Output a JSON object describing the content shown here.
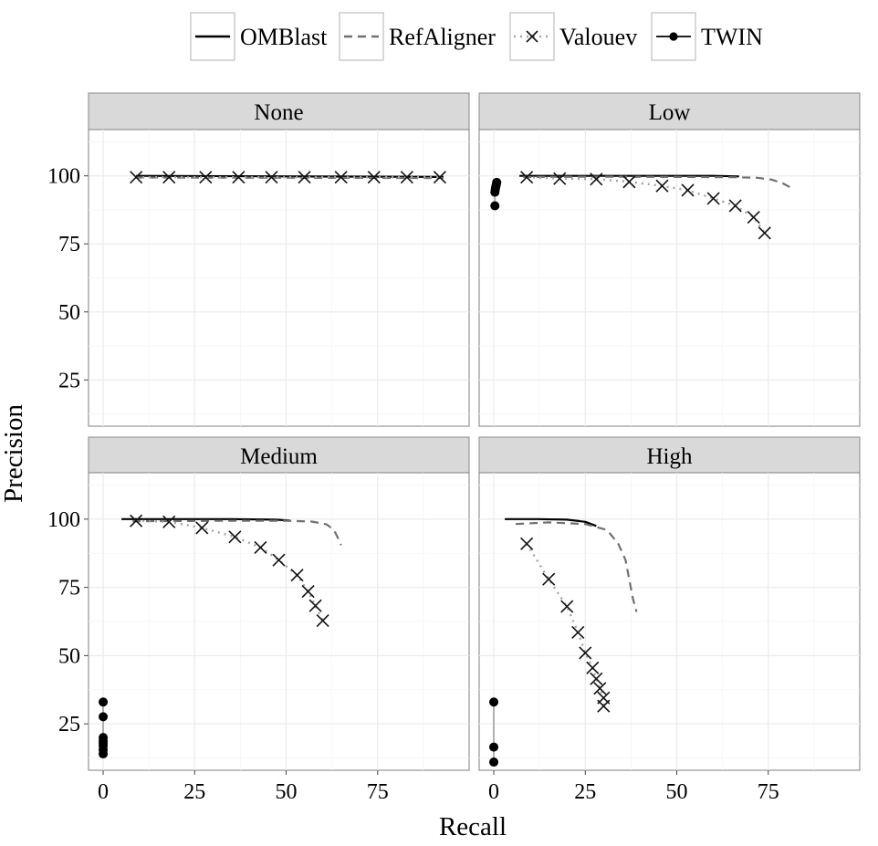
{
  "chart_data": {
    "type": "line",
    "title": "",
    "xlabel": "Recall",
    "ylabel": "Precision",
    "xlim": [
      -4,
      100
    ],
    "ylim": [
      8,
      117
    ],
    "x_ticks": [
      0,
      25,
      50,
      75
    ],
    "y_ticks": [
      25,
      50,
      75,
      100
    ],
    "grid": true,
    "legend_position": "top",
    "legend": [
      {
        "name": "OMBlast",
        "style": "solid",
        "color": "#000000"
      },
      {
        "name": "RefAligner",
        "style": "dashed",
        "color": "#707070"
      },
      {
        "name": "Valouev",
        "style": "dotted-cross",
        "color": "#a0a0a0"
      },
      {
        "name": "TWIN",
        "style": "point-line",
        "color": "#000000"
      }
    ],
    "panels": [
      {
        "title": "None",
        "series": [
          {
            "name": "OMBlast",
            "x": [
              9,
              93
            ],
            "y": [
              100,
              99.6
            ]
          },
          {
            "name": "RefAligner",
            "x": [
              9,
              93
            ],
            "y": [
              99.4,
              99.2
            ]
          },
          {
            "name": "Valouev",
            "x": [
              9,
              18,
              28,
              37,
              46,
              55,
              65,
              74,
              83,
              92
            ],
            "y": [
              99.5,
              99.5,
              99.5,
              99.5,
              99.5,
              99.5,
              99.5,
              99.5,
              99.5,
              99.5
            ]
          },
          {
            "name": "TWIN",
            "x": [],
            "y": []
          }
        ]
      },
      {
        "title": "Low",
        "series": [
          {
            "name": "OMBlast",
            "x": [
              7,
              20,
              40,
              60,
              67
            ],
            "y": [
              100,
              100,
              100,
              100,
              99.8
            ]
          },
          {
            "name": "RefAligner",
            "x": [
              8,
              30,
              50,
              65,
              72,
              76,
              79,
              81
            ],
            "y": [
              99.6,
              99.7,
              99.6,
              99.5,
              99.3,
              98.6,
              97.2,
              95.8
            ]
          },
          {
            "name": "Valouev",
            "x": [
              9,
              18,
              28,
              37,
              46,
              53,
              60,
              66,
              71,
              74
            ],
            "y": [
              99.5,
              99,
              98.8,
              97.8,
              96.3,
              94.7,
              91.7,
              89,
              84.8,
              79
            ]
          },
          {
            "name": "TWIN",
            "x": [
              0.3,
              0.3,
              0.4,
              0.5,
              0.6,
              0.7,
              0.8
            ],
            "y": [
              89,
              94,
              95,
              95.8,
              96.3,
              97,
              97.6
            ]
          }
        ]
      },
      {
        "title": "Medium",
        "series": [
          {
            "name": "OMBlast",
            "x": [
              5,
              20,
              35,
              47,
              51
            ],
            "y": [
              100,
              100,
              100,
              99.8,
              99.5
            ]
          },
          {
            "name": "RefAligner",
            "x": [
              8,
              35,
              50,
              57,
              61,
              63,
              64,
              65
            ],
            "y": [
              99.2,
              99.4,
              99.4,
              99.1,
              98.1,
              96.2,
              93.5,
              90.5
            ]
          },
          {
            "name": "Valouev",
            "x": [
              9,
              18,
              27,
              36,
              43,
              48,
              53,
              56,
              58,
              60
            ],
            "y": [
              99.4,
              99,
              96.8,
              93.5,
              89.6,
              85,
              79.5,
              73.5,
              68.3,
              62.8
            ]
          },
          {
            "name": "TWIN",
            "x": [
              0,
              0,
              0,
              0,
              0,
              0,
              0,
              0
            ],
            "y": [
              33,
              27.6,
              20,
              18.8,
              18,
              17,
              15.5,
              14
            ]
          }
        ]
      },
      {
        "title": "High",
        "series": [
          {
            "name": "OMBlast",
            "x": [
              3,
              12,
              20,
              25,
              28
            ],
            "y": [
              100,
              100,
              99.8,
              99,
              97.5
            ]
          },
          {
            "name": "RefAligner",
            "x": [
              6,
              15,
              25,
              31,
              34,
              36,
              37,
              38,
              39
            ],
            "y": [
              98.2,
              98.8,
              98.2,
              96,
              91,
              85,
              78,
              71,
              66
            ]
          },
          {
            "name": "Valouev",
            "x": [
              9,
              15,
              20,
              23,
              25,
              27,
              28,
              29,
              30,
              30
            ],
            "y": [
              91,
              78,
              68,
              58.5,
              51,
              45.5,
              41.5,
              38,
              34.5,
              31.5
            ]
          },
          {
            "name": "TWIN",
            "x": [
              0,
              0,
              0
            ],
            "y": [
              33,
              16.5,
              11
            ]
          }
        ]
      }
    ]
  }
}
